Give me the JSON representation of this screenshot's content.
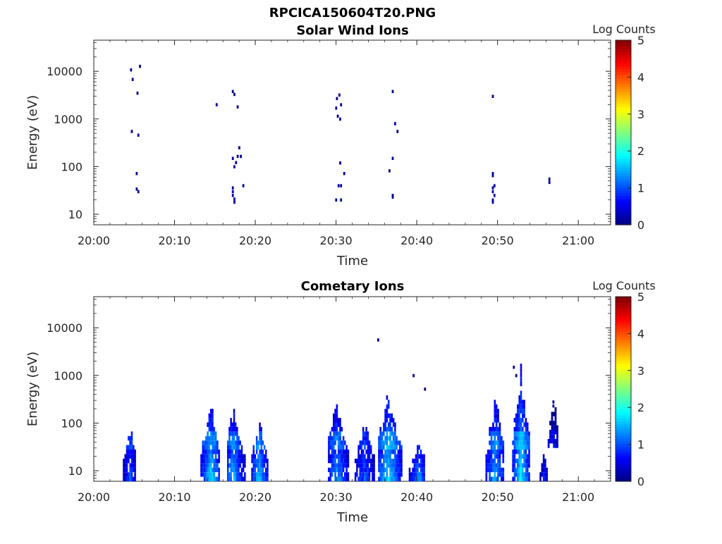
{
  "page": {
    "title": "RPCICA150604T20.PNG"
  },
  "chart_data": [
    {
      "type": "heatmap",
      "title": "Solar Wind Ions",
      "xlabel": "Time",
      "ylabel": "Energy (eV)",
      "x_ticks": [
        "20:00",
        "20:10",
        "20:20",
        "20:30",
        "20:40",
        "20:50",
        "21:00"
      ],
      "y_ticks": [
        "10",
        "100",
        "1000",
        "10000"
      ],
      "y_scale": "log",
      "ylim": [
        6,
        45000
      ],
      "xlim": [
        0,
        64
      ],
      "colorbar": {
        "label": "Log Counts",
        "ticks": [
          "0",
          "1",
          "2",
          "3",
          "4",
          "5"
        ],
        "range": [
          0,
          5
        ],
        "colormap": "jet"
      },
      "pixels": [
        [
          4.6,
          10800,
          0.1
        ],
        [
          4.8,
          6800,
          0.1
        ],
        [
          5.7,
          12800,
          0.1
        ],
        [
          5.4,
          3500,
          0.1
        ],
        [
          4.7,
          550,
          0.1
        ],
        [
          5.5,
          460,
          0.1
        ],
        [
          5.3,
          72,
          0.1
        ],
        [
          5.3,
          34,
          0.1
        ],
        [
          5.5,
          30,
          0.1
        ],
        [
          15.2,
          2000,
          0.1
        ],
        [
          17.2,
          3800,
          0.1
        ],
        [
          17.4,
          3300,
          0.1
        ],
        [
          17.8,
          1800,
          0.1
        ],
        [
          18.0,
          250,
          0.1
        ],
        [
          17.8,
          165,
          0.1
        ],
        [
          18.2,
          165,
          0.1
        ],
        [
          17.2,
          150,
          0.1
        ],
        [
          17.6,
          122,
          0.1
        ],
        [
          17.4,
          100,
          0.1
        ],
        [
          18.5,
          40,
          0.1
        ],
        [
          17.2,
          36,
          0.2
        ],
        [
          17.2,
          30,
          0.3
        ],
        [
          17.2,
          25,
          0.2
        ],
        [
          17.4,
          21,
          0.2
        ],
        [
          17.4,
          18,
          0.1
        ],
        [
          30.4,
          3200,
          0.1
        ],
        [
          30.1,
          2700,
          0.1
        ],
        [
          30.6,
          2000,
          0.1
        ],
        [
          30.0,
          1700,
          0.1
        ],
        [
          30.2,
          1150,
          0.1
        ],
        [
          30.5,
          1000,
          0.1
        ],
        [
          30.5,
          120,
          0.1
        ],
        [
          31.0,
          72,
          0.1
        ],
        [
          30.3,
          40,
          0.2
        ],
        [
          30.6,
          40,
          0.1
        ],
        [
          30.0,
          20,
          0.1
        ],
        [
          30.6,
          20,
          0.1
        ],
        [
          37.0,
          3800,
          0.1
        ],
        [
          37.3,
          800,
          0.1
        ],
        [
          37.6,
          550,
          0.1
        ],
        [
          37.0,
          150,
          0.1
        ],
        [
          36.6,
          82,
          0.1
        ],
        [
          37.0,
          25,
          0.1
        ],
        [
          37.0,
          23,
          0.1
        ],
        [
          49.4,
          3000,
          0.1
        ],
        [
          49.4,
          72,
          0.1
        ],
        [
          49.4,
          65,
          0.1
        ],
        [
          49.6,
          40,
          0.2
        ],
        [
          49.4,
          36,
          0.2
        ],
        [
          49.4,
          30,
          0.3
        ],
        [
          49.6,
          25,
          0.2
        ],
        [
          49.4,
          20,
          0.1
        ],
        [
          49.4,
          18,
          0.1
        ],
        [
          56.4,
          55,
          0.1
        ],
        [
          56.4,
          47,
          0.1
        ]
      ]
    },
    {
      "type": "heatmap",
      "title": "Cometary Ions",
      "xlabel": "Time",
      "ylabel": "Energy (eV)",
      "x_ticks": [
        "20:00",
        "20:10",
        "20:20",
        "20:30",
        "20:40",
        "20:50",
        "21:00"
      ],
      "y_ticks": [
        "10",
        "100",
        "1000",
        "10000"
      ],
      "y_scale": "log",
      "ylim": [
        6,
        45000
      ],
      "xlim": [
        0,
        64
      ],
      "colorbar": {
        "label": "Log Counts",
        "ticks": [
          "0",
          "1",
          "2",
          "3",
          "4",
          "5"
        ],
        "range": [
          0,
          5
        ],
        "colormap": "jet"
      },
      "clusters": [
        {
          "t0": 3.6,
          "t1": 5.2,
          "e_lo": 6,
          "e_hi": 110,
          "peak": 1.3,
          "center": 4.4
        },
        {
          "t0": 13.2,
          "t1": 15.6,
          "e_lo": 6,
          "e_hi": 350,
          "peak": 1.9,
          "center": 14.4
        },
        {
          "t0": 16.5,
          "t1": 18.8,
          "e_lo": 6,
          "e_hi": 280,
          "peak": 1.7,
          "center": 17.2
        },
        {
          "t0": 19.5,
          "t1": 21.6,
          "e_lo": 6,
          "e_hi": 150,
          "peak": 1.8,
          "center": 20.4
        },
        {
          "t0": 29.0,
          "t1": 31.6,
          "e_lo": 6,
          "e_hi": 400,
          "peak": 1.6,
          "center": 30.0
        },
        {
          "t0": 32.3,
          "t1": 34.8,
          "e_lo": 6,
          "e_hi": 110,
          "peak": 1.3,
          "center": 33.5
        },
        {
          "t0": 35.2,
          "t1": 38.2,
          "e_lo": 6,
          "e_hi": 650,
          "peak": 1.9,
          "center": 36.4
        },
        {
          "t0": 39.0,
          "t1": 41.0,
          "e_lo": 6,
          "e_hi": 45,
          "peak": 1.6,
          "center": 40.2
        },
        {
          "t0": 48.5,
          "t1": 50.8,
          "e_lo": 6,
          "e_hi": 450,
          "peak": 1.7,
          "center": 49.6
        },
        {
          "t0": 51.8,
          "t1": 54.0,
          "e_lo": 6,
          "e_hi": 1500,
          "peak": 2.0,
          "center": 52.8
        },
        {
          "t0": 55.2,
          "t1": 56.2,
          "e_lo": 6,
          "e_hi": 28,
          "peak": 1.0,
          "center": 55.7
        },
        {
          "t0": 56.2,
          "t1": 57.5,
          "e_lo": 30,
          "e_hi": 280,
          "peak": 0.6,
          "center": 56.9
        }
      ],
      "pixels": [
        [
          35.2,
          5600,
          0.1
        ],
        [
          39.6,
          1000,
          0.1
        ],
        [
          41.0,
          520,
          0.1
        ],
        [
          52.0,
          1500,
          0.1
        ],
        [
          52.3,
          1000,
          0.1
        ],
        [
          56.9,
          280,
          0.1
        ],
        [
          56.9,
          230,
          0.1
        ],
        [
          57.0,
          40,
          0.2
        ],
        [
          57.3,
          40,
          0.2
        ]
      ]
    }
  ]
}
